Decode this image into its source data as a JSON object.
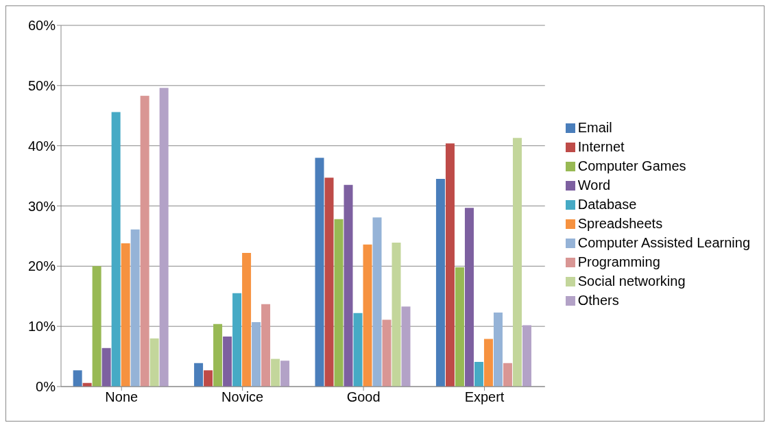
{
  "chart_data": {
    "type": "bar",
    "categories": [
      "None",
      "Novice",
      "Good",
      "Expert"
    ],
    "series": [
      {
        "name": "Email",
        "color": "#4a7ebb",
        "values": [
          2.7,
          3.9,
          38.0,
          34.5
        ]
      },
      {
        "name": "Internet",
        "color": "#be4b48",
        "values": [
          0.6,
          2.7,
          34.7,
          40.4
        ]
      },
      {
        "name": "Computer Games",
        "color": "#98b954",
        "values": [
          20.0,
          10.4,
          27.8,
          19.8
        ]
      },
      {
        "name": "Word",
        "color": "#7d60a0",
        "values": [
          6.4,
          8.3,
          33.5,
          29.7
        ]
      },
      {
        "name": "Database",
        "color": "#46aac5",
        "values": [
          45.6,
          15.5,
          12.2,
          4.1
        ]
      },
      {
        "name": "Spreadsheets",
        "color": "#f69240",
        "values": [
          23.8,
          22.2,
          23.6,
          7.9
        ]
      },
      {
        "name": "Computer Assisted Learning",
        "color": "#95b3d7",
        "values": [
          26.1,
          10.7,
          28.1,
          12.3
        ]
      },
      {
        "name": "Programming",
        "color": "#d99694",
        "values": [
          48.3,
          13.7,
          11.1,
          3.9
        ]
      },
      {
        "name": "Social networking",
        "color": "#c3d69b",
        "values": [
          8.0,
          4.6,
          23.9,
          41.3
        ]
      },
      {
        "name": "Others",
        "color": "#b3a2c7",
        "values": [
          49.6,
          4.3,
          13.3,
          10.2
        ]
      }
    ],
    "ylim": [
      0,
      60
    ],
    "yticks": [
      {
        "value": 0,
        "label": "0%"
      },
      {
        "value": 10,
        "label": "10%"
      },
      {
        "value": 20,
        "label": "20%"
      },
      {
        "value": 30,
        "label": "30%"
      },
      {
        "value": 40,
        "label": "40%"
      },
      {
        "value": 50,
        "label": "50%"
      },
      {
        "value": 60,
        "label": "60%"
      }
    ],
    "grid": "y",
    "legend": "right"
  }
}
